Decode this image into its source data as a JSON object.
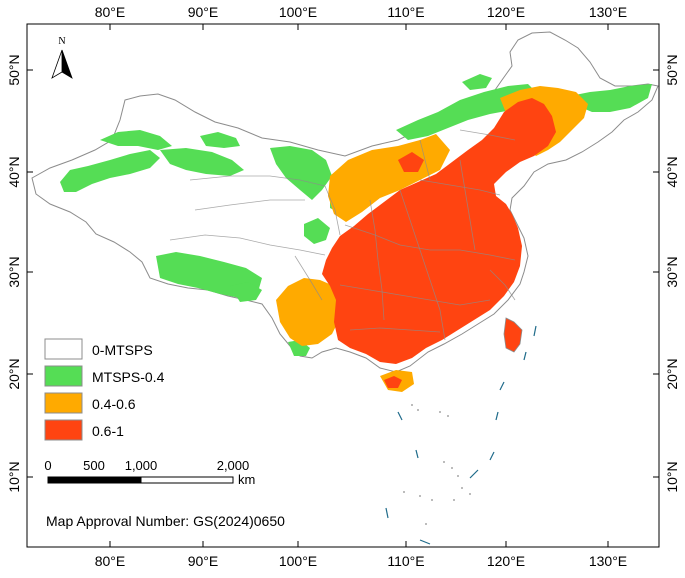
{
  "axes": {
    "top_ticks": [
      "80°E",
      "90°E",
      "100°E",
      "110°E",
      "120°E",
      "130°E"
    ],
    "bottom_ticks": [
      "80°E",
      "90°E",
      "100°E",
      "110°E",
      "120°E",
      "130°E"
    ],
    "left_ticks": [
      "50°N",
      "40°N",
      "30°N",
      "20°N",
      "10°N"
    ],
    "right_ticks": [
      "50°N",
      "40°N",
      "30°N",
      "20°N",
      "10°N"
    ]
  },
  "north_arrow": {
    "label": "N",
    "icon": "north-arrow-icon"
  },
  "legend": {
    "items": [
      {
        "label": "0-MTSPS",
        "color": "#ffffff"
      },
      {
        "label": "MTSPS-0.4",
        "color": "#55dd55"
      },
      {
        "label": "0.4-0.6",
        "color": "#ffaa00"
      },
      {
        "label": "0.6-1",
        "color": "#ff4411"
      }
    ]
  },
  "scale_bar": {
    "labels": [
      "0",
      "500",
      "1,000",
      "2,000"
    ],
    "unit": "km"
  },
  "approval": "Map Approval Number: GS(2024)0650",
  "colors": {
    "boundary": "#8c8c8c",
    "class_low": "#ffffff",
    "class_mid_low": "#55dd55",
    "class_mid": "#ffaa00",
    "class_high": "#ff4411",
    "island_line": "#1f6b8a"
  }
}
